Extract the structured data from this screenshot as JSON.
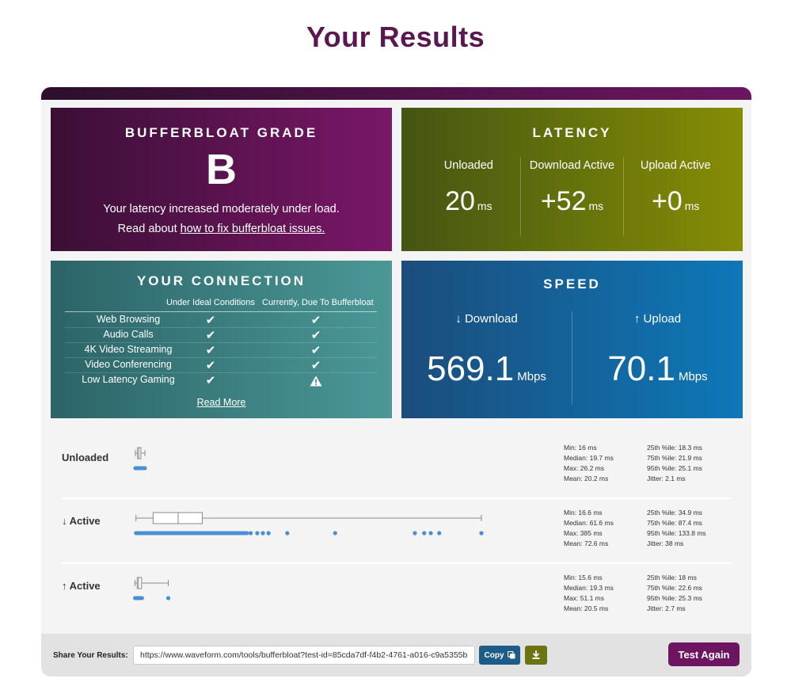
{
  "page": {
    "title": "Your Results"
  },
  "grade": {
    "title": "BUFFERBLOAT GRADE",
    "letter": "B",
    "description": "Your latency increased moderately under load.",
    "link_prefix": "Read about ",
    "link_text": "how to fix bufferbloat issues."
  },
  "latency": {
    "title": "LATENCY",
    "columns": [
      {
        "label": "Unloaded",
        "value": "20",
        "unit": "ms"
      },
      {
        "label": "Download Active",
        "value": "+52",
        "unit": "ms"
      },
      {
        "label": "Upload Active",
        "value": "+0",
        "unit": "ms"
      }
    ]
  },
  "connection": {
    "title": "YOUR CONNECTION",
    "header_ideal": "Under Ideal Conditions",
    "header_current": "Currently, Due To Bufferbloat",
    "rows": [
      {
        "name": "Web Browsing",
        "ideal": "✔",
        "current": "✔"
      },
      {
        "name": "Audio Calls",
        "ideal": "✔",
        "current": "✔"
      },
      {
        "name": "4K Video Streaming",
        "ideal": "✔",
        "current": "✔"
      },
      {
        "name": "Video Conferencing",
        "ideal": "✔",
        "current": "✔"
      },
      {
        "name": "Low Latency Gaming",
        "ideal": "✔",
        "current": "warning"
      }
    ],
    "read_more": "Read More"
  },
  "speed": {
    "title": "SPEED",
    "download": {
      "label": "↓ Download",
      "value": "569.1",
      "unit": "Mbps"
    },
    "upload": {
      "label": "↑ Upload",
      "value": "70.1",
      "unit": "Mbps"
    }
  },
  "distributions": [
    {
      "label": "Unloaded",
      "stats_a": [
        "Min: 16 ms",
        "Median: 19.7 ms",
        "Max: 26.2 ms",
        "Mean: 20.2 ms"
      ],
      "stats_b": [
        "25th %ile: 18.3 ms",
        "75th %ile: 21.9 ms",
        "95th %ile: 25.1 ms",
        "Jitter: 2.1 ms"
      ],
      "box": {
        "min": 16,
        "q1": 18.3,
        "median": 19.7,
        "q3": 21.9,
        "max": 26.2
      },
      "outliers": []
    },
    {
      "label": "↓ Active",
      "stats_a": [
        "Min: 16.6 ms",
        "Median: 61.6 ms",
        "Max: 385 ms",
        "Mean: 72.6 ms"
      ],
      "stats_b": [
        "25th %ile: 34.9 ms",
        "75th %ile: 87.4 ms",
        "95th %ile: 133.8 ms",
        "Jitter: 38 ms"
      ],
      "box": {
        "min": 16.6,
        "q1": 34.9,
        "median": 61.6,
        "q3": 87.4,
        "max": 385
      },
      "outliers": [
        139,
        146,
        152,
        158,
        178,
        229,
        314,
        324,
        331,
        340,
        385
      ]
    },
    {
      "label": "↑ Active",
      "stats_a": [
        "Min: 15.6 ms",
        "Median: 19.3 ms",
        "Max: 51.1 ms",
        "Mean: 20.5 ms"
      ],
      "stats_b": [
        "25th %ile: 18 ms",
        "75th %ile: 22.6 ms",
        "95th %ile: 25.3 ms",
        "Jitter: 2.7 ms"
      ],
      "box": {
        "min": 15.6,
        "q1": 18,
        "median": 19.3,
        "q3": 22.6,
        "max": 51.1
      },
      "outliers": [
        51.1
      ]
    }
  ],
  "share": {
    "label": "Share Your Results:",
    "url": "https://www.waveform.com/tools/bufferbloat?test-id=85cda7df-f4b2-4761-a016-c9a5355b",
    "copy_label": "Copy",
    "test_again": "Test Again"
  }
}
